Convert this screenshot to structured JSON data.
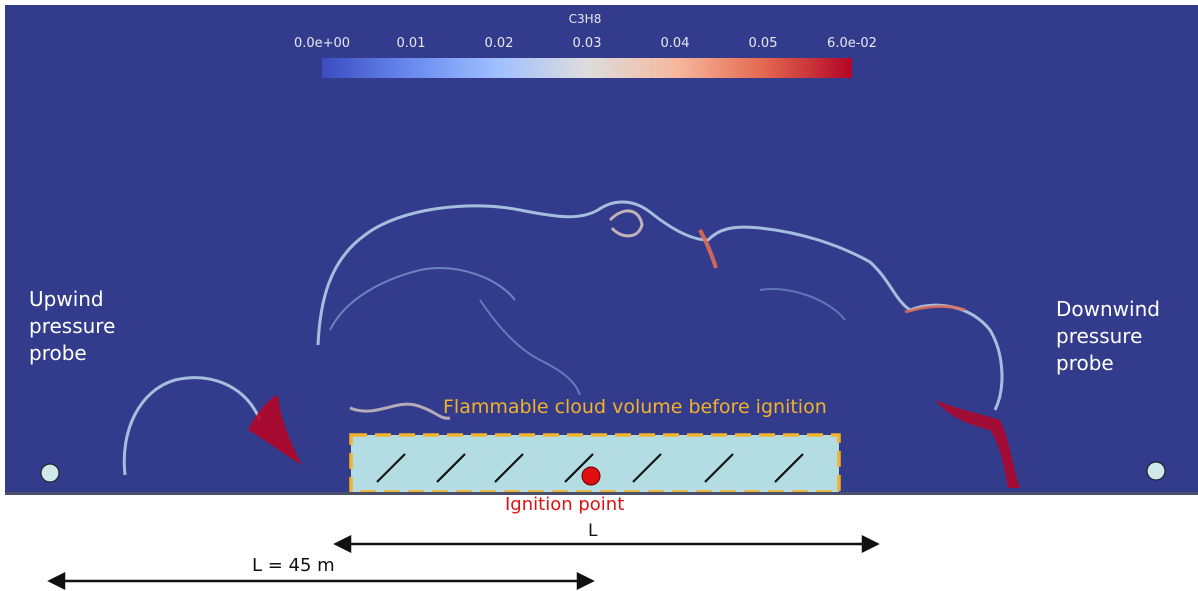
{
  "colorbar": {
    "title": "C3H8",
    "ticks": [
      "0.0e+00",
      "0.01",
      "0.02",
      "0.03",
      "0.04",
      "0.05",
      "6.0e-02"
    ],
    "min": 0.0,
    "max": 0.06,
    "colors": [
      "#3b4cc0",
      "#dddddd",
      "#b40426"
    ]
  },
  "labels": {
    "upwind_probe": [
      "Upwind",
      "pressure",
      "probe"
    ],
    "downwind_probe": [
      "Downwind",
      "pressure",
      "probe"
    ],
    "cloud_volume": "Flammable cloud volume before ignition",
    "ignition_point": "Ignition point",
    "length": "L",
    "length_value": "L = 45 m"
  },
  "colors": {
    "background": "#333c8c",
    "cloud_fill": "#b3dde3",
    "cloud_border": "#f2b22a",
    "ignition": "#e01010"
  }
}
